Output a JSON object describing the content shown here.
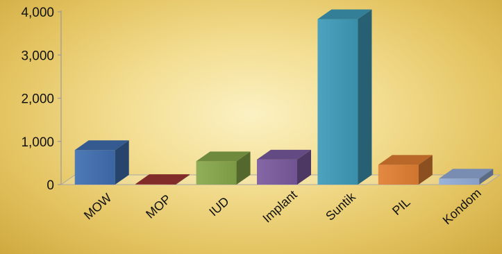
{
  "chart_data": {
    "type": "bar",
    "title": "",
    "xlabel": "",
    "ylabel": "",
    "categories": [
      "MOW",
      "MOP",
      "IUD",
      "Implant",
      "Suntik",
      "PIL",
      "Kondom"
    ],
    "values": [
      800,
      15,
      540,
      580,
      3830,
      460,
      140
    ],
    "ylim": [
      0,
      4000
    ],
    "yticks": [
      "0",
      "1,000",
      "2,000",
      "3,000",
      "4,000"
    ],
    "grid": false,
    "legend": "none",
    "colors": [
      "#3f6eb0",
      "#9e3633",
      "#87a74a",
      "#7a5a9e",
      "#3e9bb8",
      "#e17f32",
      "#92acd8"
    ]
  }
}
